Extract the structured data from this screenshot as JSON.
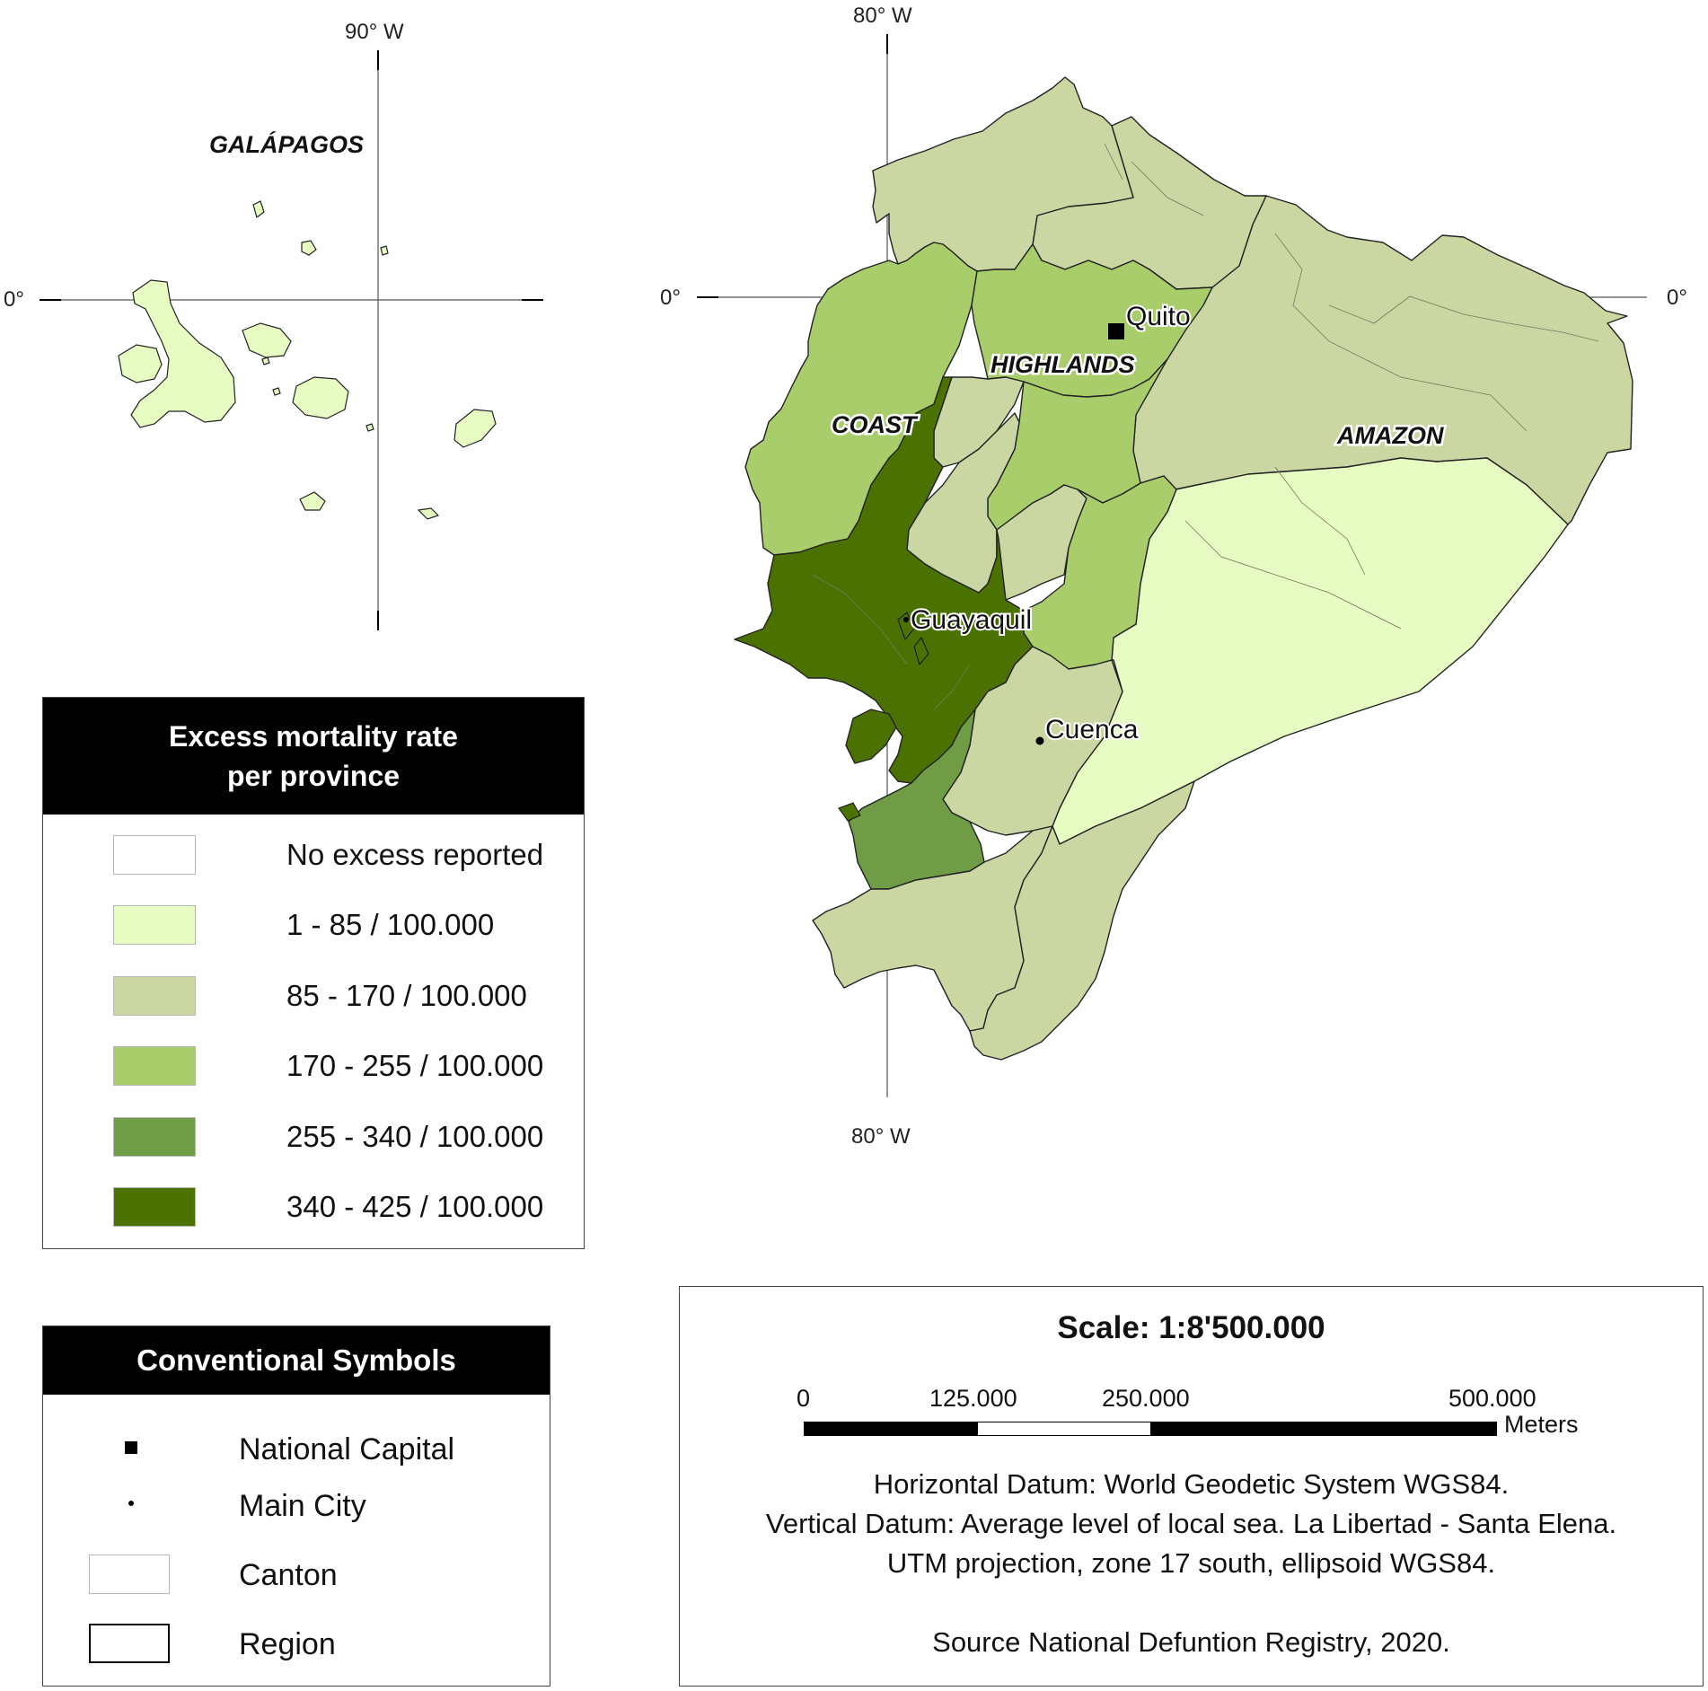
{
  "map": {
    "graticule": {
      "top_lon_main": "80° W",
      "bottom_lon_main": "80° W",
      "lon_galapagos": "90° W",
      "lat_left": "0°",
      "lat_mid": "0°",
      "lat_right": "0°"
    },
    "places": {
      "galapagos": "GALÁPAGOS",
      "coast": "COAST",
      "highlands": "HIGHLANDS",
      "amazon": "AMAZON",
      "quito": "Quito",
      "guayaquil": "Guayaquil",
      "cuenca": "Cuenca"
    },
    "province_fill_classes": {
      "esmeraldas": "85-170",
      "carchi_imbabura": "85-170",
      "pichincha": "170-255",
      "manabi": "170-255",
      "santo_domingo": "85-170",
      "los_rios": "340-425",
      "santa_elena_guayas": "340-425",
      "el_oro": "255-340",
      "loja": "85-170",
      "azuay": "85-170",
      "canar": "170-255",
      "chimborazo": "85-170",
      "tungurahua_cotopaxi": "170-255",
      "zamora": "85-170",
      "morona_pastaza": "1-85",
      "sucumbios_orellana_napo": "85-170",
      "galapagos": "1-85"
    }
  },
  "colors": {
    "no_excess": "#ffffff",
    "c1_85": "#e6fcc2",
    "c85_170": "#cad7a3",
    "c170_255": "#aacd6b",
    "c255_340": "#6f9c45",
    "c340_425": "#4b7200"
  },
  "legend_mortality": {
    "title_line1": "Excess mortality rate",
    "title_line2": "per province",
    "items": [
      {
        "label": "No excess reported",
        "color": "#ffffff"
      },
      {
        "label": "1 - 85 / 100.000",
        "color": "#e6fcc2"
      },
      {
        "label": "85 - 170 / 100.000",
        "color": "#cad7a3"
      },
      {
        "label": "170 - 255 / 100.000",
        "color": "#aacd6b"
      },
      {
        "label": "255 - 340 / 100.000",
        "color": "#6f9c45"
      },
      {
        "label": "340 - 425 / 100.000",
        "color": "#4b7200"
      }
    ]
  },
  "legend_symbols": {
    "title": "Conventional Symbols",
    "items": [
      {
        "label": "National Capital",
        "icon": "square-marker-icon"
      },
      {
        "label": "Main City",
        "icon": "dot-marker-icon"
      },
      {
        "label": "Canton",
        "icon": "canton-outline-icon"
      },
      {
        "label": "Region",
        "icon": "region-outline-icon"
      }
    ]
  },
  "scale": {
    "title": "Scale: 1:8'500.000",
    "ticks": [
      "0",
      "125.000",
      "250.000",
      "500.000"
    ],
    "units": "Meters",
    "datum_lines": [
      "Horizontal Datum: World Geodetic System WGS84.",
      "Vertical Datum: Average level of local sea. La Libertad - Santa Elena.",
      "UTM projection, zone 17 south, ellipsoid WGS84."
    ],
    "source": "Source National Defuntion Registry, 2020."
  }
}
